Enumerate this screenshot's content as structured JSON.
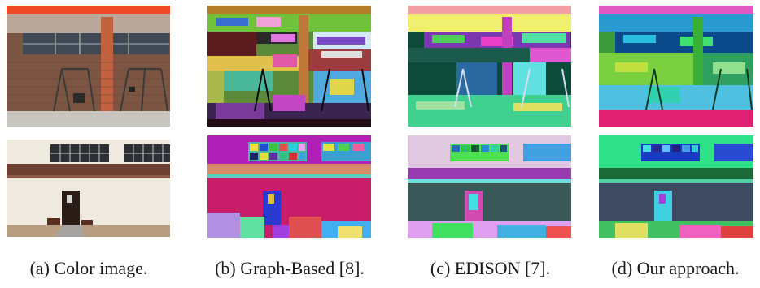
{
  "figure": {
    "captions": [
      "(a) Color image.",
      "(b) Graph-Based  [8].",
      "(c) EDISON [7].",
      "(d) Our approach."
    ],
    "rows": [
      {
        "name": "playground-building",
        "description_colors": [
          "#e8442a",
          "#8a5a42",
          "#5b3a2e",
          "#c9c6c0"
        ]
      },
      {
        "name": "white-building-door",
        "description_colors": [
          "#6b4030",
          "#e8e2d4",
          "#3b2a22",
          "#b79a7a"
        ]
      }
    ]
  }
}
